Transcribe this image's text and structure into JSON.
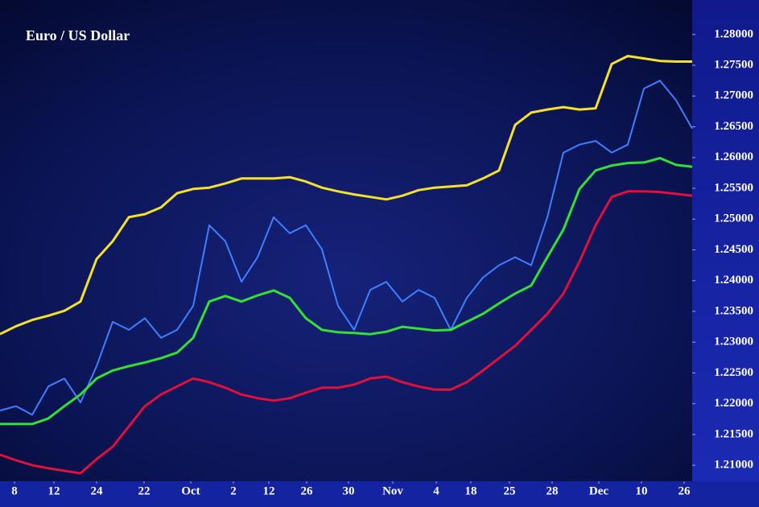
{
  "chart_data": {
    "type": "line",
    "title": "Euro / US Dollar",
    "x": [
      0,
      2,
      4,
      6,
      8,
      10,
      12,
      14,
      16,
      18,
      20,
      22,
      24,
      26,
      28,
      30,
      32,
      34,
      36,
      38,
      40,
      42,
      44,
      46,
      48,
      50,
      52,
      54,
      56,
      58,
      60,
      62,
      64,
      66,
      68,
      70,
      72,
      74,
      76,
      78,
      80,
      82,
      84,
      86
    ],
    "xlim": [
      0,
      86
    ],
    "xticks": [
      {
        "value": 1.8,
        "label": "8"
      },
      {
        "value": 6.7,
        "label": "12"
      },
      {
        "value": 12.0,
        "label": "24"
      },
      {
        "value": 17.9,
        "label": "22"
      },
      {
        "value": 23.7,
        "label": "Oct"
      },
      {
        "value": 29.0,
        "label": "2"
      },
      {
        "value": 33.4,
        "label": "12"
      },
      {
        "value": 38.1,
        "label": "26"
      },
      {
        "value": 43.3,
        "label": "30"
      },
      {
        "value": 48.8,
        "label": "Nov"
      },
      {
        "value": 54.2,
        "label": "4"
      },
      {
        "value": 58.5,
        "label": "18"
      },
      {
        "value": 63.3,
        "label": "25"
      },
      {
        "value": 68.6,
        "label": "28"
      },
      {
        "value": 74.4,
        "label": "Dec"
      },
      {
        "value": 79.7,
        "label": "10"
      },
      {
        "value": 85.0,
        "label": "26"
      }
    ],
    "ylim": [
      1.2074,
      1.2856
    ],
    "yticks": [
      {
        "value": 1.28,
        "label": "1.28000"
      },
      {
        "value": 1.275,
        "label": "1.27500"
      },
      {
        "value": 1.27,
        "label": "1.27000"
      },
      {
        "value": 1.265,
        "label": "1.26500"
      },
      {
        "value": 1.26,
        "label": "1.26000"
      },
      {
        "value": 1.255,
        "label": "1.25500"
      },
      {
        "value": 1.25,
        "label": "1.25000"
      },
      {
        "value": 1.245,
        "label": "1.24500"
      },
      {
        "value": 1.24,
        "label": "1.24000"
      },
      {
        "value": 1.235,
        "label": "1.23500"
      },
      {
        "value": 1.23,
        "label": "1.23000"
      },
      {
        "value": 1.225,
        "label": "1.22500"
      },
      {
        "value": 1.22,
        "label": "1.22000"
      },
      {
        "value": 1.215,
        "label": "1.21500"
      },
      {
        "value": 1.21,
        "label": "1.21000"
      }
    ],
    "series": [
      {
        "color": "#3d7fff",
        "values": [
          1.2189,
          1.2196,
          1.2182,
          1.2228,
          1.2241,
          1.2202,
          1.2261,
          1.2333,
          1.232,
          1.2339,
          1.2307,
          1.232,
          1.2359,
          1.249,
          1.2464,
          1.2398,
          1.2438,
          1.2503,
          1.2477,
          1.249,
          1.2451,
          1.2359,
          1.232,
          1.2385,
          1.2398,
          1.2366,
          1.2385,
          1.2372,
          1.232,
          1.2372,
          1.2405,
          1.2425,
          1.2438,
          1.2425,
          1.2503,
          1.2608,
          1.2621,
          1.2627,
          1.2608,
          1.2621,
          1.2712,
          1.2725,
          1.2693,
          1.2647
        ]
      },
      {
        "color": "#f5e12a",
        "values": [
          1.2313,
          1.2326,
          1.2336,
          1.2343,
          1.2351,
          1.2366,
          1.2435,
          1.2464,
          1.2503,
          1.2508,
          1.2519,
          1.2542,
          1.2549,
          1.2551,
          1.2558,
          1.2566,
          1.2566,
          1.2566,
          1.2568,
          1.2561,
          1.2551,
          1.2545,
          1.254,
          1.2536,
          1.2532,
          1.2538,
          1.2547,
          1.2551,
          1.2553,
          1.2555,
          1.2566,
          1.2579,
          1.2653,
          1.2673,
          1.2678,
          1.2682,
          1.2678,
          1.268,
          1.2752,
          1.2765,
          1.2761,
          1.2757,
          1.2756,
          1.2756
        ]
      },
      {
        "color": "#33e033",
        "values": [
          1.2167,
          1.2167,
          1.2167,
          1.2176,
          1.2196,
          1.2215,
          1.2241,
          1.2254,
          1.2261,
          1.2267,
          1.2274,
          1.2283,
          1.2307,
          1.2366,
          1.2375,
          1.2366,
          1.2376,
          1.2384,
          1.2372,
          1.2339,
          1.232,
          1.2316,
          1.2315,
          1.2313,
          1.2317,
          1.2325,
          1.2322,
          1.2319,
          1.232,
          1.2333,
          1.2346,
          1.2363,
          1.2379,
          1.2392,
          1.2438,
          1.2483,
          1.2549,
          1.2579,
          1.2587,
          1.2591,
          1.2592,
          1.2599,
          1.2588,
          1.2585
        ]
      },
      {
        "color": "#e0103a",
        "values": [
          1.2117,
          1.2108,
          1.21,
          1.2095,
          1.2091,
          1.2087,
          1.211,
          1.213,
          1.2163,
          1.2196,
          1.2215,
          1.2228,
          1.2241,
          1.2235,
          1.2226,
          1.2215,
          1.2209,
          1.2205,
          1.2209,
          1.2218,
          1.2226,
          1.2226,
          1.2231,
          1.2241,
          1.2244,
          1.2235,
          1.2228,
          1.2223,
          1.2223,
          1.2235,
          1.2254,
          1.2274,
          1.2294,
          1.232,
          1.2346,
          1.2379,
          1.2431,
          1.249,
          1.2536,
          1.2545,
          1.2545,
          1.2544,
          1.2541,
          1.2538
        ]
      }
    ]
  }
}
